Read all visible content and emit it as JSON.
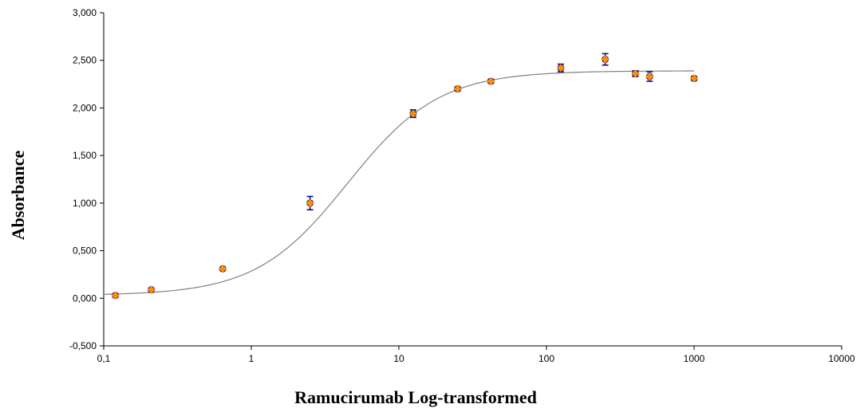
{
  "chart_data": {
    "type": "scatter",
    "xscale": "log",
    "xlim": [
      0.1,
      10000
    ],
    "ylim": [
      -0.5,
      3.0
    ],
    "xlabel": "Ramucirumab Log-transformed",
    "ylabel": "Absorbance",
    "grid": false,
    "legend": "none",
    "x_ticks": [
      0.1,
      1,
      10,
      100,
      1000,
      10000
    ],
    "x_tick_labels": [
      "0,1",
      "1",
      "10",
      "100",
      "1000",
      "10000"
    ],
    "y_ticks": [
      -0.5,
      0,
      0.5,
      1.0,
      1.5,
      2.0,
      2.5,
      3.0
    ],
    "y_tick_labels": [
      "-0,500",
      "0,000",
      "0,500",
      "1,000",
      "1,500",
      "2,000",
      "2,500",
      "3,000"
    ],
    "colors": {
      "observed": "#00008B",
      "fitted": "#FF8C00",
      "curve": "#808080"
    },
    "series": [
      {
        "marker": "circle",
        "color": "#00008B",
        "points": [
          {
            "x": 0.12,
            "y": 0.03,
            "err": 0.015
          },
          {
            "x": 0.21,
            "y": 0.09,
            "err": 0.01
          },
          {
            "x": 0.64,
            "y": 0.31,
            "err": 0.015
          },
          {
            "x": 2.5,
            "y": 1.0,
            "err": 0.07
          },
          {
            "x": 12.5,
            "y": 1.94,
            "err": 0.04
          },
          {
            "x": 25,
            "y": 2.2,
            "err": 0.02
          },
          {
            "x": 42,
            "y": 2.28,
            "err": 0.02
          },
          {
            "x": 125,
            "y": 2.42,
            "err": 0.04
          },
          {
            "x": 250,
            "y": 2.51,
            "err": 0.06
          },
          {
            "x": 400,
            "y": 2.36,
            "err": 0.03
          },
          {
            "x": 500,
            "y": 2.33,
            "err": 0.05
          },
          {
            "x": 1000,
            "y": 2.31,
            "err": 0.02
          }
        ]
      },
      {
        "marker": "diamond",
        "color": "#FF8C00",
        "points": [
          {
            "x": 0.12,
            "y": 0.03
          },
          {
            "x": 0.21,
            "y": 0.09
          },
          {
            "x": 0.64,
            "y": 0.31
          },
          {
            "x": 2.5,
            "y": 1.0
          },
          {
            "x": 12.5,
            "y": 1.94
          },
          {
            "x": 25,
            "y": 2.2
          },
          {
            "x": 42,
            "y": 2.28
          },
          {
            "x": 125,
            "y": 2.42
          },
          {
            "x": 250,
            "y": 2.51
          },
          {
            "x": 400,
            "y": 2.36
          },
          {
            "x": 500,
            "y": 2.33
          },
          {
            "x": 1000,
            "y": 2.31
          }
        ]
      }
    ],
    "fit_curve": {
      "model": "4PL",
      "bottom": 0.03,
      "top": 2.39,
      "ec50": 4.5,
      "hill": 1.4,
      "x_range": [
        0.1,
        1000
      ]
    }
  }
}
